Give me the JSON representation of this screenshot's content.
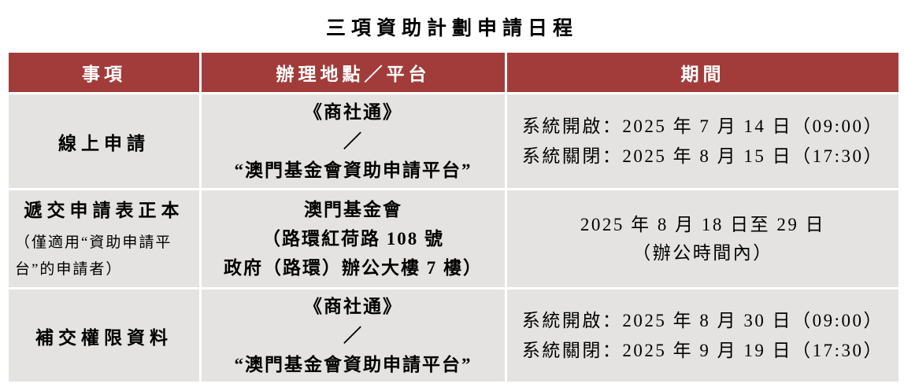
{
  "title": "三項資助計劃申請日程",
  "colors": {
    "header_bg": "#A23C3A",
    "header_text": "#FFFFFF",
    "cell_bg": "#E4E3E1",
    "body_text": "#000000"
  },
  "table": {
    "headers": [
      "事項",
      "辦理地點／平台",
      "期間"
    ],
    "rows": [
      {
        "item": "線上申請",
        "item_note": "",
        "location_lines": [
          "《商社通》",
          "／",
          "“澳門基金會資助申請平台”"
        ],
        "period_lines": [
          "系統開啟：2025 年 7 月 14 日（09:00）",
          "系統關閉：2025 年 8 月 15 日（17:30）"
        ]
      },
      {
        "item": "遞交申請表正本",
        "item_note": "（僅適用“資助申請平台”的申請者）",
        "location_lines": [
          "澳門基金會",
          "（路環紅荷路 108 號",
          "政府（路環）辦公大樓 7 樓）"
        ],
        "period_lines": [
          "2025 年 8 月 18 日至 29 日",
          "（辦公時間內）"
        ]
      },
      {
        "item": "補交權限資料",
        "item_note": "",
        "location_lines": [
          "《商社通》",
          "／",
          "“澳門基金會資助申請平台”"
        ],
        "period_lines": [
          "系統開啟：2025 年 8 月 30 日（09:00）",
          "系統關閉：2025 年 9 月 19 日（17:30）"
        ]
      }
    ]
  }
}
